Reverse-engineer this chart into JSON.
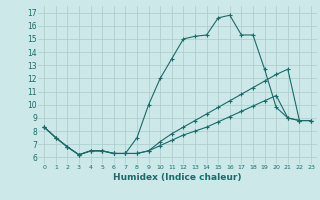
{
  "xlabel": "Humidex (Indice chaleur)",
  "bg_color": "#cce8e8",
  "grid_color": "#aacccc",
  "line_color": "#1a6b6b",
  "xlim": [
    -0.5,
    23.5
  ],
  "ylim": [
    5.5,
    17.5
  ],
  "xticks": [
    0,
    1,
    2,
    3,
    4,
    5,
    6,
    7,
    8,
    9,
    10,
    11,
    12,
    13,
    14,
    15,
    16,
    17,
    18,
    19,
    20,
    21,
    22,
    23
  ],
  "yticks": [
    6,
    7,
    8,
    9,
    10,
    11,
    12,
    13,
    14,
    15,
    16,
    17
  ],
  "series": [
    [
      8.3,
      7.5,
      6.8,
      6.2,
      6.5,
      6.5,
      6.3,
      6.3,
      7.5,
      10.0,
      12.0,
      13.5,
      15.0,
      15.2,
      15.3,
      16.6,
      16.8,
      15.3,
      15.3,
      12.7,
      9.8,
      9.0,
      8.8,
      8.8
    ],
    [
      8.3,
      7.5,
      6.8,
      6.2,
      6.5,
      6.5,
      6.3,
      6.3,
      6.3,
      6.5,
      7.2,
      7.8,
      8.3,
      8.8,
      9.3,
      9.8,
      10.3,
      10.8,
      11.3,
      11.8,
      12.3,
      12.7,
      8.8,
      8.8
    ],
    [
      8.3,
      7.5,
      6.8,
      6.2,
      6.5,
      6.5,
      6.3,
      6.3,
      6.3,
      6.5,
      6.9,
      7.3,
      7.7,
      8.0,
      8.3,
      8.7,
      9.1,
      9.5,
      9.9,
      10.3,
      10.7,
      9.0,
      8.8,
      8.8
    ]
  ]
}
